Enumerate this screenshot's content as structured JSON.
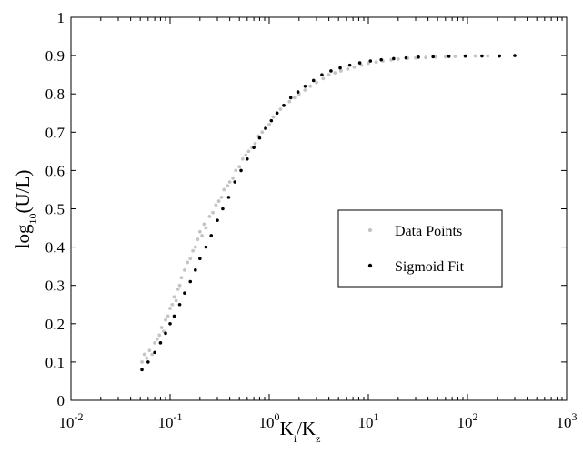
{
  "chart_data": {
    "type": "scatter",
    "title": "",
    "xlabel": "Ki/Kz",
    "xlabel_parts": {
      "main1": "K",
      "sub1": "i",
      "sep": "/",
      "main2": "K",
      "sub2": "z"
    },
    "ylabel": "log10(U/L)",
    "ylabel_parts": {
      "pre": "log",
      "sub": "10",
      "post": "(U/L)"
    },
    "x_scale": "log",
    "xlim": [
      0.01,
      1000
    ],
    "ylim": [
      0,
      1
    ],
    "x_ticks": [
      {
        "value": 0.01,
        "base": "10",
        "exp": "-2"
      },
      {
        "value": 0.1,
        "base": "10",
        "exp": "-1"
      },
      {
        "value": 1,
        "base": "10",
        "exp": "0"
      },
      {
        "value": 10,
        "base": "10",
        "exp": "1"
      },
      {
        "value": 100,
        "base": "10",
        "exp": "2"
      },
      {
        "value": 1000,
        "base": "10",
        "exp": "3"
      }
    ],
    "y_ticks": [
      0,
      0.1,
      0.2,
      0.3,
      0.4,
      0.5,
      0.6,
      0.7,
      0.8,
      0.9,
      1
    ],
    "y_tick_labels": [
      "0",
      "0.1",
      "0.2",
      "0.3",
      "0.4",
      "0.5",
      "0.6",
      "0.7",
      "0.8",
      "0.9",
      "1"
    ],
    "grid": false,
    "legend_position": "center-right",
    "series": [
      {
        "name": "Data Points",
        "color": "#c4c4c4",
        "marker": "dot",
        "points": [
          [
            0.052,
            0.1
          ],
          [
            0.055,
            0.12
          ],
          [
            0.058,
            0.11
          ],
          [
            0.062,
            0.13
          ],
          [
            0.066,
            0.12
          ],
          [
            0.07,
            0.15
          ],
          [
            0.074,
            0.16
          ],
          [
            0.078,
            0.17
          ],
          [
            0.082,
            0.19
          ],
          [
            0.086,
            0.18
          ],
          [
            0.09,
            0.21
          ],
          [
            0.095,
            0.22
          ],
          [
            0.1,
            0.24
          ],
          [
            0.105,
            0.25
          ],
          [
            0.11,
            0.27
          ],
          [
            0.115,
            0.26
          ],
          [
            0.12,
            0.29
          ],
          [
            0.125,
            0.3
          ],
          [
            0.13,
            0.32
          ],
          [
            0.14,
            0.34
          ],
          [
            0.15,
            0.36
          ],
          [
            0.16,
            0.37
          ],
          [
            0.17,
            0.39
          ],
          [
            0.18,
            0.4
          ],
          [
            0.19,
            0.42
          ],
          [
            0.2,
            0.44
          ],
          [
            0.21,
            0.43
          ],
          [
            0.22,
            0.46
          ],
          [
            0.23,
            0.45
          ],
          [
            0.25,
            0.48
          ],
          [
            0.27,
            0.49
          ],
          [
            0.29,
            0.51
          ],
          [
            0.31,
            0.52
          ],
          [
            0.33,
            0.53
          ],
          [
            0.35,
            0.55
          ],
          [
            0.38,
            0.56
          ],
          [
            0.4,
            0.57
          ],
          [
            0.43,
            0.58
          ],
          [
            0.46,
            0.6
          ],
          [
            0.5,
            0.61
          ],
          [
            0.54,
            0.63
          ],
          [
            0.58,
            0.64
          ],
          [
            0.62,
            0.65
          ],
          [
            0.67,
            0.66
          ],
          [
            0.72,
            0.67
          ],
          [
            0.78,
            0.69
          ],
          [
            0.85,
            0.7
          ],
          [
            0.92,
            0.71
          ],
          [
            1.0,
            0.72
          ],
          [
            1.1,
            0.74
          ],
          [
            1.2,
            0.75
          ],
          [
            1.3,
            0.76
          ],
          [
            1.45,
            0.77
          ],
          [
            1.6,
            0.78
          ],
          [
            1.8,
            0.79
          ],
          [
            2.0,
            0.8
          ],
          [
            2.3,
            0.81
          ],
          [
            2.6,
            0.82
          ],
          [
            3.0,
            0.83
          ],
          [
            3.5,
            0.84
          ],
          [
            4.0,
            0.85
          ],
          [
            4.6,
            0.855
          ],
          [
            5.3,
            0.86
          ],
          [
            6.2,
            0.865
          ],
          [
            7.2,
            0.87
          ],
          [
            8.5,
            0.875
          ],
          [
            10,
            0.88
          ],
          [
            12,
            0.883
          ],
          [
            14,
            0.886
          ],
          [
            17,
            0.889
          ],
          [
            20,
            0.891
          ],
          [
            25,
            0.893
          ],
          [
            30,
            0.894
          ],
          [
            38,
            0.895
          ],
          [
            48,
            0.896
          ],
          [
            60,
            0.897
          ],
          [
            75,
            0.898
          ],
          [
            95,
            0.898
          ],
          [
            120,
            0.899
          ],
          [
            160,
            0.899
          ],
          [
            210,
            0.899
          ]
        ]
      },
      {
        "name": "Sigmoid Fit",
        "color": "#000000",
        "marker": "dot",
        "points": [
          [
            0.052,
            0.08
          ],
          [
            0.06,
            0.1
          ],
          [
            0.07,
            0.125
          ],
          [
            0.08,
            0.15
          ],
          [
            0.09,
            0.175
          ],
          [
            0.1,
            0.2
          ],
          [
            0.11,
            0.22
          ],
          [
            0.125,
            0.25
          ],
          [
            0.14,
            0.28
          ],
          [
            0.16,
            0.31
          ],
          [
            0.18,
            0.34
          ],
          [
            0.2,
            0.37
          ],
          [
            0.23,
            0.4
          ],
          [
            0.26,
            0.43
          ],
          [
            0.3,
            0.47
          ],
          [
            0.34,
            0.5
          ],
          [
            0.39,
            0.53
          ],
          [
            0.45,
            0.57
          ],
          [
            0.52,
            0.6
          ],
          [
            0.6,
            0.63
          ],
          [
            0.7,
            0.66
          ],
          [
            0.8,
            0.685
          ],
          [
            0.92,
            0.71
          ],
          [
            1.05,
            0.73
          ],
          [
            1.2,
            0.75
          ],
          [
            1.4,
            0.77
          ],
          [
            1.65,
            0.79
          ],
          [
            1.95,
            0.805
          ],
          [
            2.3,
            0.82
          ],
          [
            2.8,
            0.835
          ],
          [
            3.4,
            0.85
          ],
          [
            4.2,
            0.86
          ],
          [
            5.2,
            0.868
          ],
          [
            6.5,
            0.875
          ],
          [
            8.2,
            0.881
          ],
          [
            10.5,
            0.886
          ],
          [
            13.5,
            0.889
          ],
          [
            18,
            0.892
          ],
          [
            24,
            0.894
          ],
          [
            32,
            0.896
          ],
          [
            45,
            0.897
          ],
          [
            65,
            0.898
          ],
          [
            95,
            0.899
          ],
          [
            140,
            0.899
          ],
          [
            210,
            0.899
          ],
          [
            300,
            0.9
          ]
        ]
      }
    ]
  }
}
